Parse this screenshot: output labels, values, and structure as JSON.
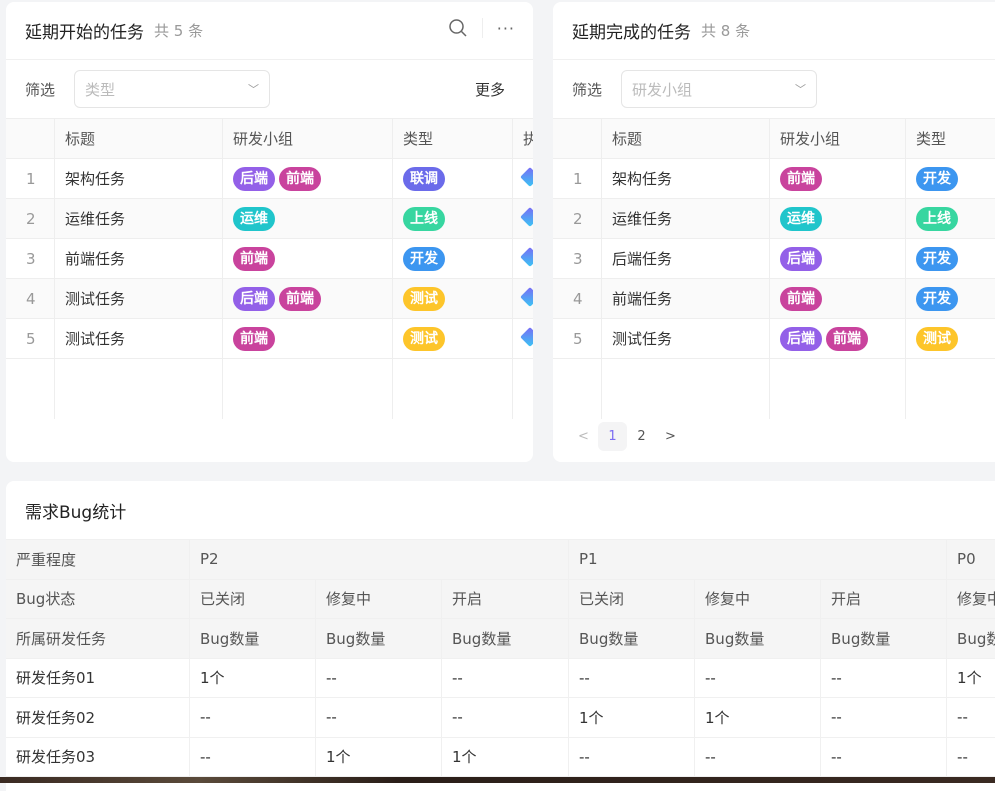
{
  "colors": {
    "后端": "#9360e8",
    "前端": "#c9439d",
    "运维": "#20c5cb",
    "联调": "#6b6bea",
    "上线": "#37d6a0",
    "开发": "#3c96f0",
    "测试": "#fdc52a",
    "accent": "#7c6cf2"
  },
  "left": {
    "title": "延期开始的任务",
    "count": "共 5 条",
    "filter_label": "筛选",
    "filter_placeholder": "类型",
    "more": "更多",
    "columns": [
      "标题",
      "研发小组",
      "类型",
      "执行人"
    ],
    "rows": [
      {
        "index": "1",
        "title": "架构任务",
        "groups": [
          "后端",
          "前端"
        ],
        "type": "联调"
      },
      {
        "index": "2",
        "title": "运维任务",
        "groups": [
          "运维"
        ],
        "type": "上线"
      },
      {
        "index": "3",
        "title": "前端任务",
        "groups": [
          "前端"
        ],
        "type": "开发"
      },
      {
        "index": "4",
        "title": "测试任务",
        "groups": [
          "后端",
          "前端"
        ],
        "type": "测试"
      },
      {
        "index": "5",
        "title": "测试任务",
        "groups": [
          "前端"
        ],
        "type": "测试"
      }
    ]
  },
  "right": {
    "title": "延期完成的任务",
    "count": "共 8 条",
    "filter_label": "筛选",
    "filter_placeholder": "研发小组",
    "columns": [
      "标题",
      "研发小组",
      "类型"
    ],
    "rows": [
      {
        "index": "1",
        "title": "架构任务",
        "groups": [
          "前端"
        ],
        "type": "开发"
      },
      {
        "index": "2",
        "title": "运维任务",
        "groups": [
          "运维"
        ],
        "type": "上线"
      },
      {
        "index": "3",
        "title": "后端任务",
        "groups": [
          "后端"
        ],
        "type": "开发"
      },
      {
        "index": "4",
        "title": "前端任务",
        "groups": [
          "前端"
        ],
        "type": "开发"
      },
      {
        "index": "5",
        "title": "测试任务",
        "groups": [
          "后端",
          "前端"
        ],
        "type": "测试"
      }
    ],
    "pagination": {
      "pages": [
        "1",
        "2"
      ],
      "current": "1"
    }
  },
  "bug": {
    "title": "需求Bug统计",
    "severity_label": "严重程度",
    "severities": [
      {
        "name": "P2",
        "span": 3
      },
      {
        "name": "P1",
        "span": 3
      },
      {
        "name": "P0",
        "span": 1
      }
    ],
    "status_label": "Bug状态",
    "statuses": [
      "已关闭",
      "修复中",
      "开启",
      "已关闭",
      "修复中",
      "开启",
      "修复中"
    ],
    "task_label": "所属研发任务",
    "metric": "Bug数量",
    "rows": [
      {
        "task": "研发任务01",
        "values": [
          "1个",
          "--",
          "--",
          "--",
          "--",
          "--",
          "1个"
        ]
      },
      {
        "task": "研发任务02",
        "values": [
          "--",
          "--",
          "--",
          "1个",
          "1个",
          "--",
          "--"
        ]
      },
      {
        "task": "研发任务03",
        "values": [
          "--",
          "1个",
          "1个",
          "--",
          "--",
          "--",
          "--"
        ]
      }
    ]
  }
}
